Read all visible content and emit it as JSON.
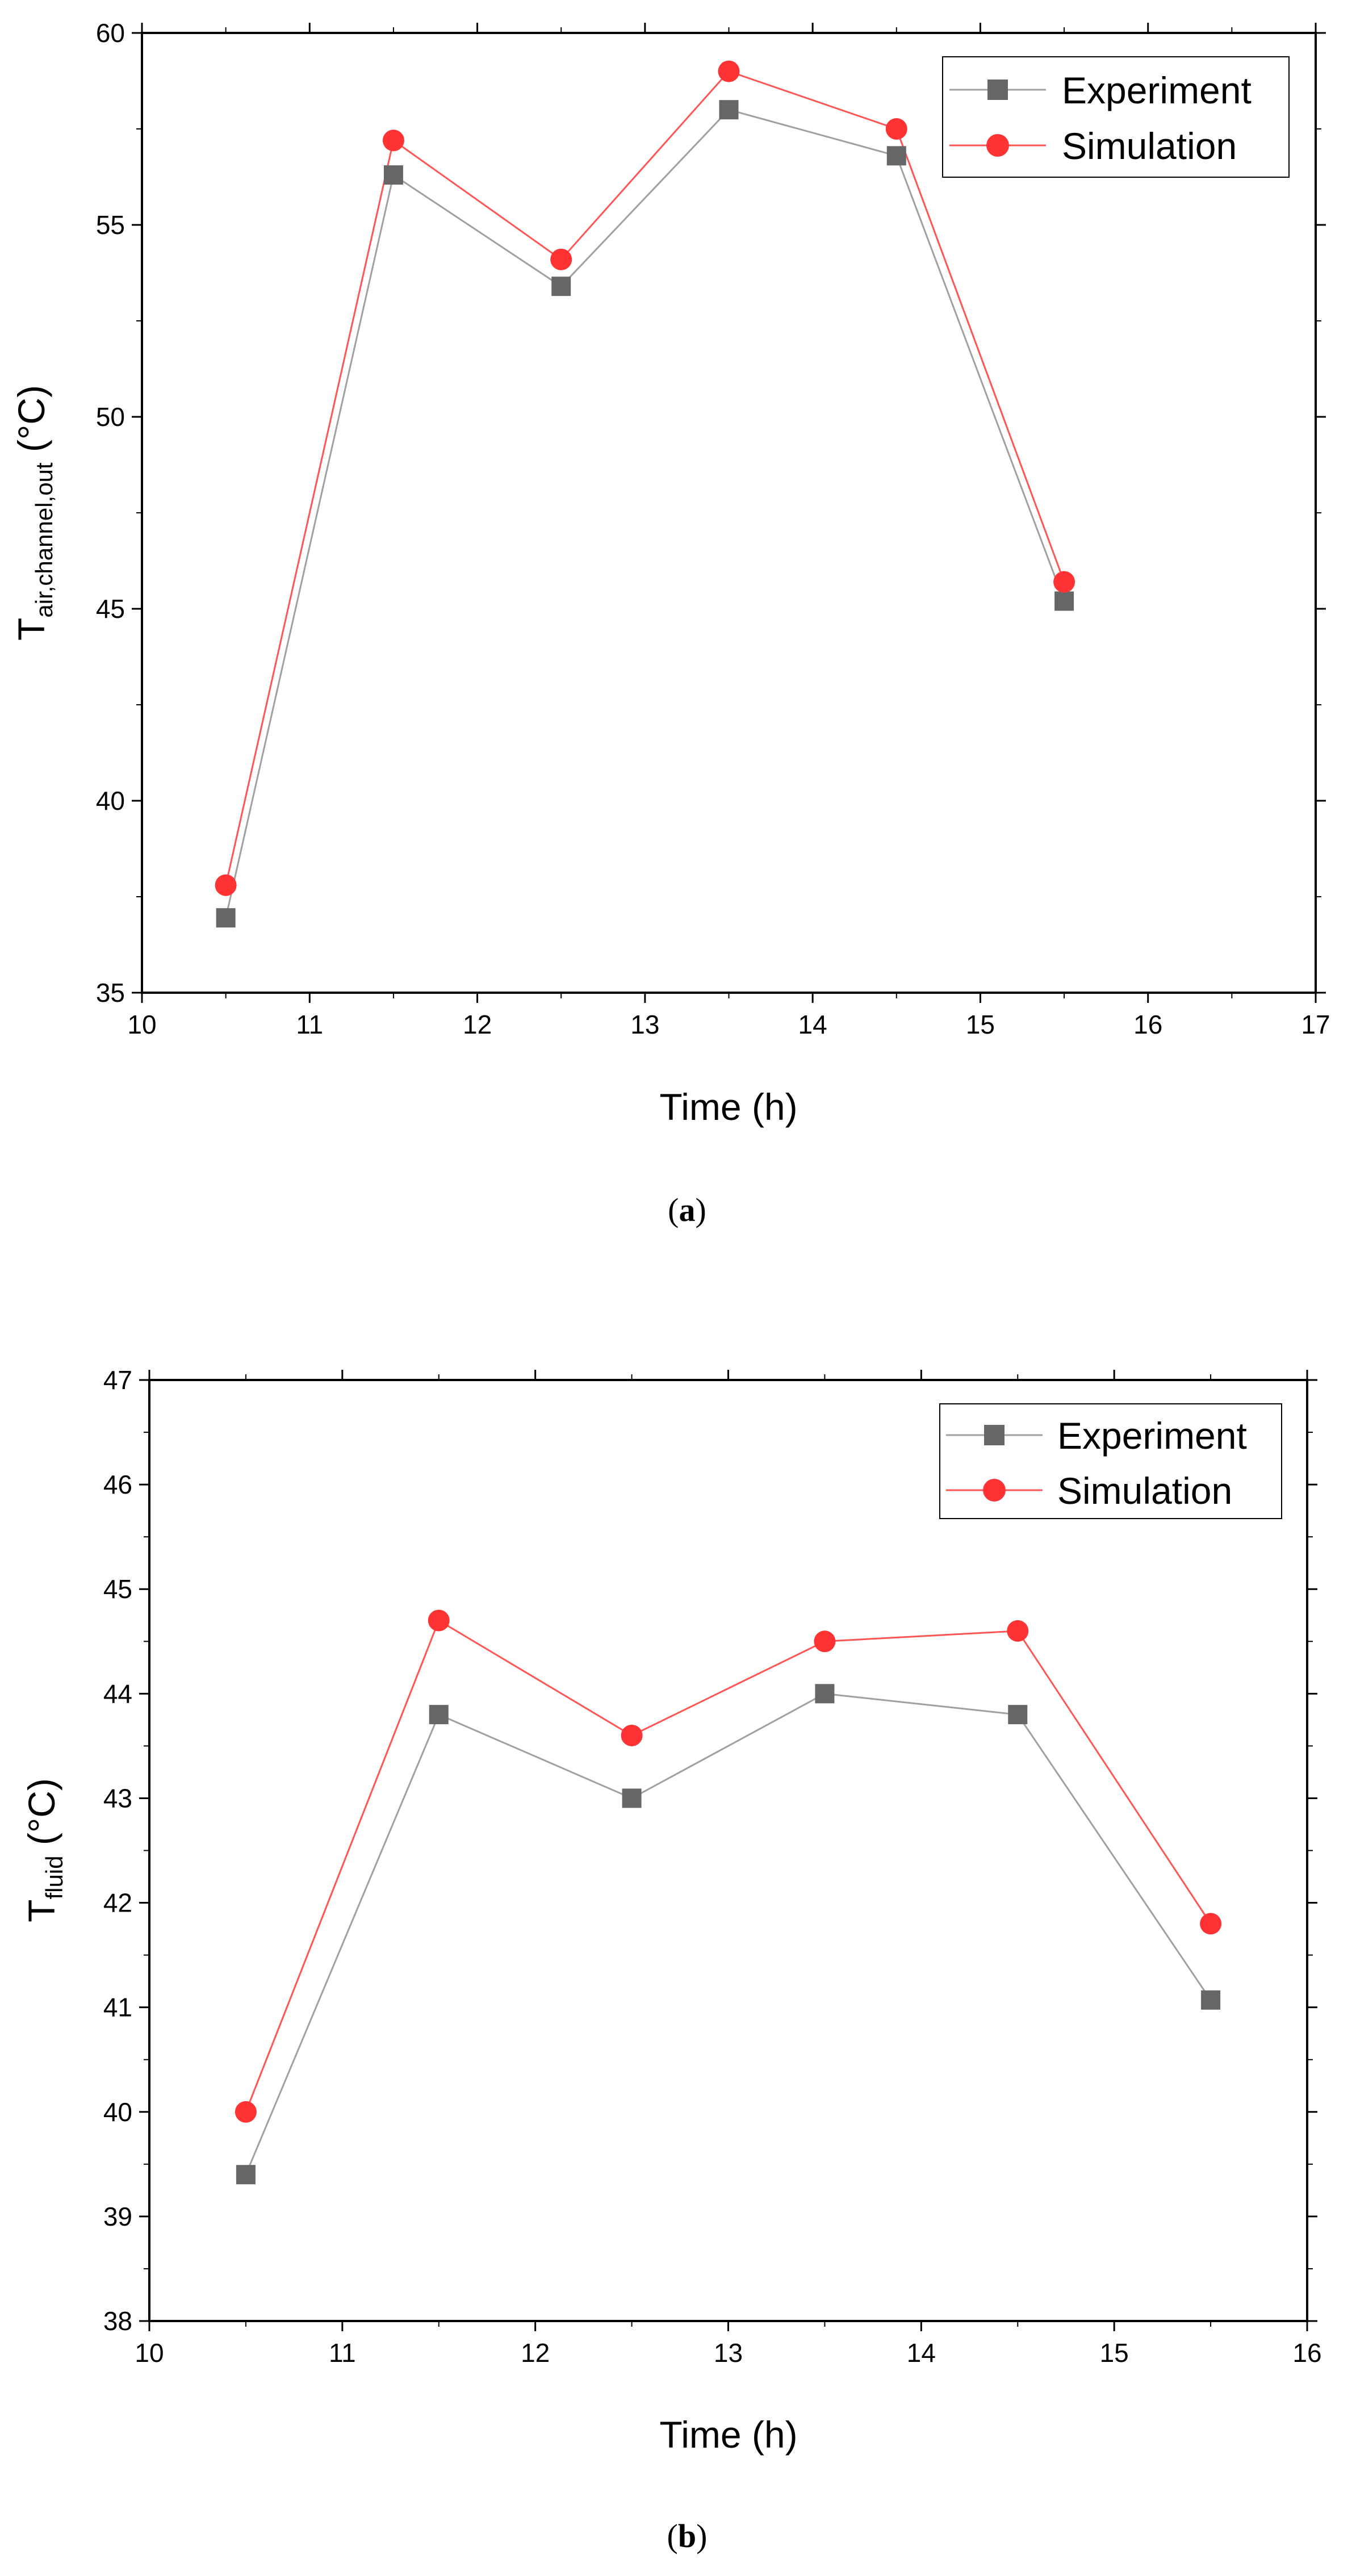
{
  "chart_data": [
    {
      "type": "line",
      "caption_open": "(",
      "caption_letter": "a",
      "caption_close": ")",
      "xlabel": "Time (h)",
      "ylabel_main": "T",
      "ylabel_sub": "air,channel,out",
      "ylabel_unit": " (°C)",
      "xlim": [
        10,
        17
      ],
      "ylim": [
        35,
        60
      ],
      "x_ticks": [
        "10",
        "11",
        "12",
        "13",
        "14",
        "15",
        "16",
        "17"
      ],
      "y_ticks": [
        "35",
        "40",
        "45",
        "50",
        "55",
        "60"
      ],
      "x": [
        10.5,
        11.5,
        12.5,
        13.5,
        14.5,
        15.5
      ],
      "series": [
        {
          "name": "Experiment",
          "marker": "square",
          "color": "#666666",
          "line_color": "#a0a0a0",
          "values": [
            36.95,
            56.3,
            53.4,
            58.0,
            56.8,
            45.2
          ]
        },
        {
          "name": "Simulation",
          "marker": "circle",
          "color": "#ff3333",
          "line_color": "#ff5555",
          "values": [
            37.8,
            57.2,
            54.1,
            59.0,
            57.5,
            45.7
          ]
        }
      ]
    },
    {
      "type": "line",
      "caption_open": "(",
      "caption_letter": "b",
      "caption_close": ")",
      "xlabel": "Time (h)",
      "ylabel_main": "T",
      "ylabel_sub": "fluid",
      "ylabel_unit": " (°C)",
      "xlim": [
        10,
        16
      ],
      "ylim": [
        38,
        47
      ],
      "x_ticks": [
        "10",
        "11",
        "12",
        "13",
        "14",
        "15",
        "16"
      ],
      "y_ticks": [
        "38",
        "39",
        "40",
        "41",
        "42",
        "43",
        "44",
        "45",
        "46",
        "47"
      ],
      "x": [
        10.5,
        11.5,
        12.5,
        13.5,
        14.5,
        15.5
      ],
      "series": [
        {
          "name": "Experiment",
          "marker": "square",
          "color": "#666666",
          "line_color": "#a0a0a0",
          "values": [
            39.4,
            43.8,
            43.0,
            44.0,
            43.8,
            41.07
          ]
        },
        {
          "name": "Simulation",
          "marker": "circle",
          "color": "#ff3333",
          "line_color": "#ff5555",
          "values": [
            40.0,
            44.7,
            43.6,
            44.5,
            44.6,
            41.8
          ]
        }
      ]
    }
  ]
}
